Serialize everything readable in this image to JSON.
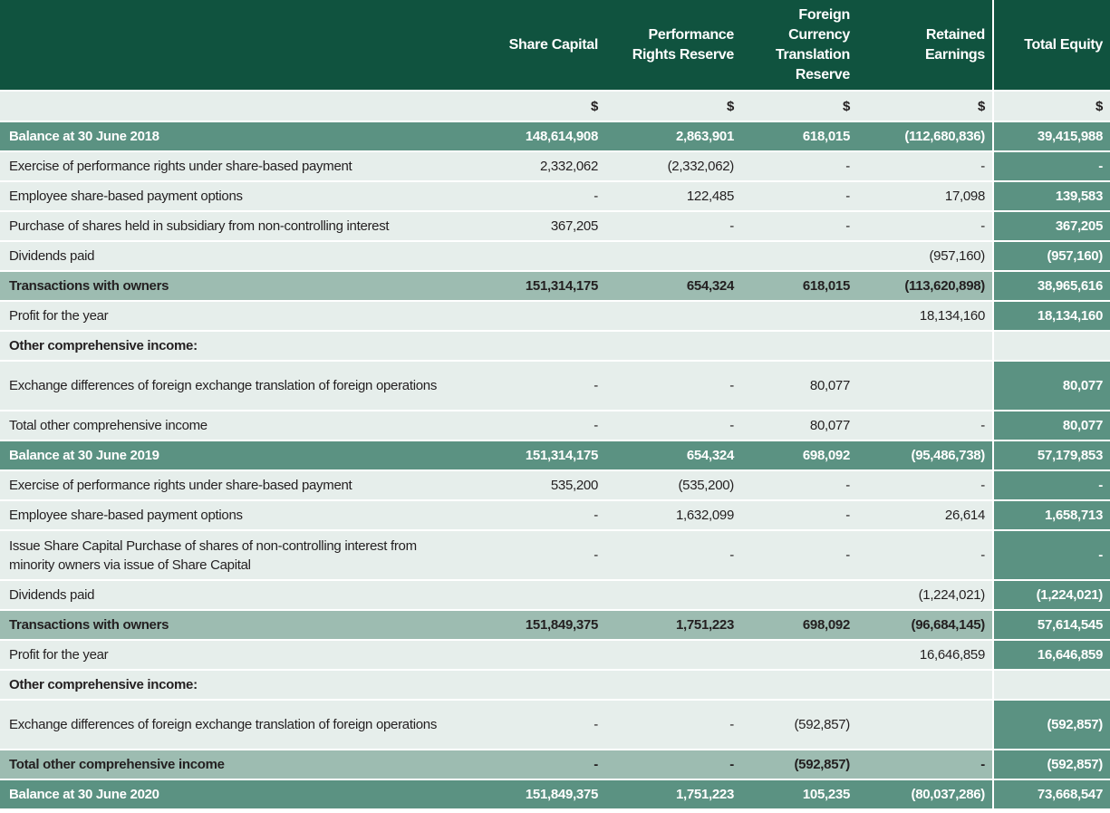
{
  "table": {
    "header": [
      "Share Capital",
      "Performance Rights Reserve",
      "Foreign Currency Translation Reserve",
      "Retained Earnings",
      "Total Equity"
    ],
    "units": [
      "$",
      "$",
      "$",
      "$",
      "$"
    ],
    "rows": [
      {
        "label": "Balance at 30 June 2018",
        "values": [
          "148,614,908",
          "2,863,901",
          "618,015",
          "(112,680,836)",
          "39,415,988"
        ]
      },
      {
        "label": "Exercise of performance rights under share-based payment",
        "values": [
          "2,332,062",
          "(2,332,062)",
          "-",
          "-",
          "-"
        ]
      },
      {
        "label": "Employee share-based payment options",
        "values": [
          "-",
          "122,485",
          "-",
          "17,098",
          "139,583"
        ]
      },
      {
        "label": "Purchase of shares held in subsidiary from non-controlling interest",
        "values": [
          "367,205",
          "-",
          "-",
          "-",
          "367,205"
        ]
      },
      {
        "label": "Dividends paid",
        "values": [
          null,
          null,
          null,
          "(957,160)",
          "(957,160)"
        ]
      },
      {
        "label": "Transactions with owners",
        "values": [
          "151,314,175",
          "654,324",
          "618,015",
          "(113,620,898)",
          "38,965,616"
        ]
      },
      {
        "label": "Profit for the year",
        "values": [
          null,
          null,
          null,
          "18,134,160",
          "18,134,160"
        ]
      },
      {
        "label": "Other comprehensive income:",
        "values": [
          null,
          null,
          null,
          null,
          null
        ]
      },
      {
        "label": "Exchange differences of foreign exchange translation of foreign operations",
        "values": [
          "-",
          "-",
          "80,077",
          null,
          "80,077"
        ]
      },
      {
        "label": "Total other comprehensive income",
        "values": [
          "-",
          "-",
          "80,077",
          "-",
          "80,077"
        ]
      },
      {
        "label": "Balance at 30 June 2019",
        "values": [
          "151,314,175",
          "654,324",
          "698,092",
          "(95,486,738)",
          "57,179,853"
        ]
      },
      {
        "label": "Exercise of performance rights under share-based payment",
        "values": [
          "535,200",
          "(535,200)",
          "-",
          "-",
          "-"
        ]
      },
      {
        "label": "Employee share-based payment options",
        "values": [
          "-",
          "1,632,099",
          "-",
          "26,614",
          "1,658,713"
        ]
      },
      {
        "label": "Issue Share Capital Purchase of shares of non-controlling interest from minority owners via issue of Share Capital",
        "values": [
          "-",
          "-",
          "-",
          "-",
          "-"
        ]
      },
      {
        "label": "Dividends paid",
        "values": [
          null,
          null,
          null,
          "(1,224,021)",
          "(1,224,021)"
        ]
      },
      {
        "label": "Transactions with owners",
        "values": [
          "151,849,375",
          "1,751,223",
          "698,092",
          "(96,684,145)",
          "57,614,545"
        ]
      },
      {
        "label": "Profit for the year",
        "values": [
          null,
          null,
          null,
          "16,646,859",
          "16,646,859"
        ]
      },
      {
        "label": "Other comprehensive income:",
        "values": [
          null,
          null,
          null,
          null,
          null
        ]
      },
      {
        "label": "Exchange differences of foreign exchange translation of foreign operations",
        "values": [
          "-",
          "-",
          "(592,857)",
          null,
          "(592,857)"
        ]
      },
      {
        "label": "Total other comprehensive income",
        "values": [
          "-",
          "-",
          "(592,857)",
          "-",
          "(592,857)"
        ]
      },
      {
        "label": "Balance at 30 June 2020",
        "values": [
          "151,849,375",
          "1,751,223",
          "105,235",
          "(80,037,286)",
          "73,668,547"
        ]
      }
    ]
  }
}
